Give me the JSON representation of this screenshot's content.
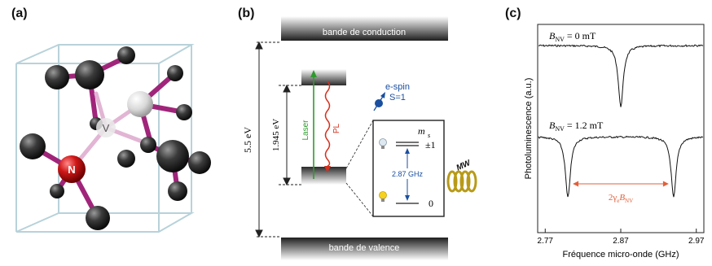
{
  "panel_a": {
    "label": "(a)",
    "atom_n": "N",
    "atom_v": "V"
  },
  "panel_b": {
    "label": "(b)",
    "conduction_band": "bande de conduction",
    "valence_band": "bande de valence",
    "gap_energy": "5.5 eV",
    "zpl_energy": "1.945 eV",
    "laser": "Laser",
    "pl": "PL",
    "espin_line1": "e-spin",
    "espin_line2": "S=1",
    "ms_label": "m",
    "ms_sub": "s",
    "level_pm1": "±1",
    "level_0": "0",
    "splitting": "2.87 GHz",
    "mw": "MW",
    "colors": {
      "laser": "#2e9a2e",
      "pl": "#d4301e",
      "spin": "#1a4fa0"
    }
  },
  "panel_c": {
    "label": "(c)",
    "ylabel": "Photoluminescence  (a.u.)",
    "xlabel": "Fréquence micro-onde (GHz)",
    "curve_top_label": "B",
    "curve_top_sub": "NV",
    "curve_top_value": " = 0 mT",
    "curve_bottom_label": "B",
    "curve_bottom_sub": "NV",
    "curve_bottom_value": " = 1.2 mT",
    "split_label_a": "2γ",
    "split_label_sub1": "e",
    "split_label_b": "B",
    "split_label_sub2": "NV",
    "colors": {
      "split": "#e0603a"
    }
  },
  "chart_data": {
    "type": "line",
    "xlabel": "Fréquence micro-onde (GHz)",
    "ylabel": "Photoluminescence  (a.u.)",
    "xlim": [
      2.76,
      2.98
    ],
    "x_ticks": [
      "2.77",
      "2.87",
      "2.97"
    ],
    "series": [
      {
        "name": "B_NV = 0 mT",
        "dips_ghz": [
          2.87
        ],
        "dip_depth": 0.75
      },
      {
        "name": "B_NV = 1.2 mT",
        "dips_ghz": [
          2.8,
          2.94
        ],
        "dip_depth": 0.75
      }
    ]
  }
}
